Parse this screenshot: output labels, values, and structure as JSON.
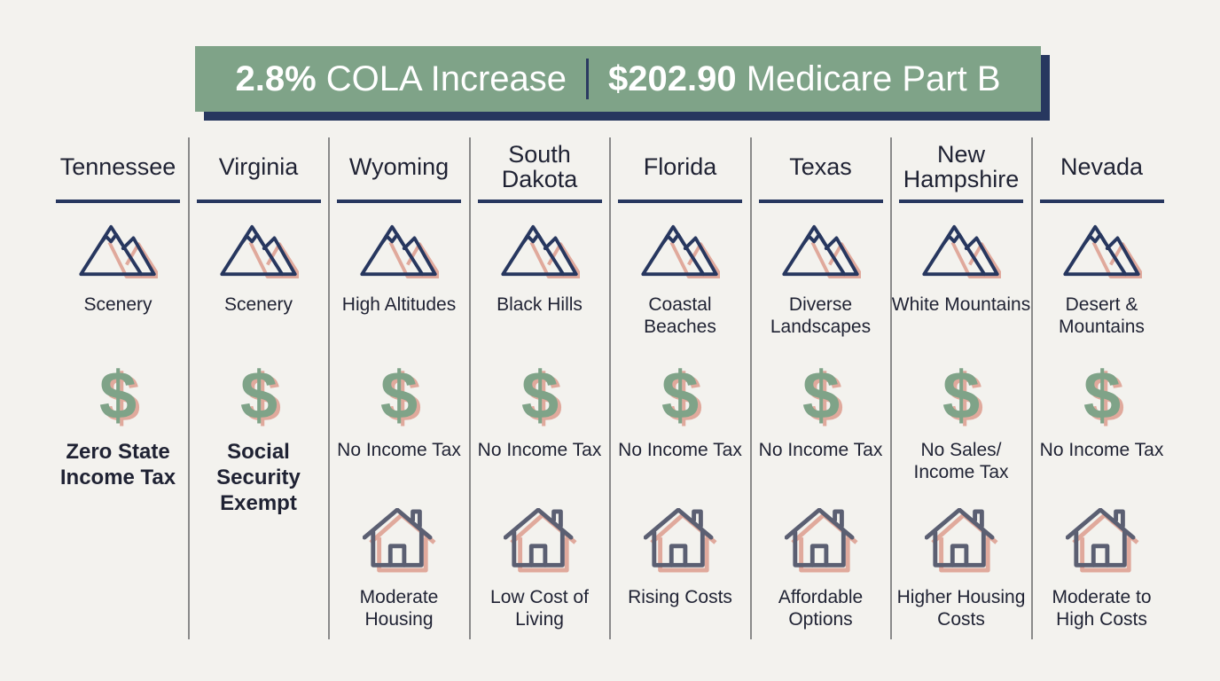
{
  "banner": {
    "cola_value": "2.8%",
    "cola_text": "COLA Increase",
    "medicare_value": "$202.90",
    "medicare_text": "Medicare Part B"
  },
  "colors": {
    "background": "#f3f2ee",
    "banner": "#7fa388",
    "navy": "#27375f",
    "dollar_green": "#7fa388",
    "shadow_red": "#e0a99c",
    "house_gray": "#5b5f72"
  },
  "icons": [
    "mountain-icon",
    "dollar-icon",
    "house-icon"
  ],
  "states": [
    {
      "name": "Tennessee",
      "scenery": "Scenery",
      "tax": "Zero State Income Tax",
      "tax_bold": true,
      "housing": null
    },
    {
      "name": "Virginia",
      "scenery": "Scenery",
      "tax": "Social Security Exempt",
      "tax_bold": true,
      "housing": null
    },
    {
      "name": "Wyoming",
      "scenery": "High Altitudes",
      "tax": "No Income Tax",
      "tax_bold": false,
      "housing": "Moderate Housing"
    },
    {
      "name": "South Dakota",
      "scenery": "Black Hills",
      "tax": "No Income Tax",
      "tax_bold": false,
      "housing": "Low Cost of Living"
    },
    {
      "name": "Florida",
      "scenery": "Coastal Beaches",
      "tax": "No Income Tax",
      "tax_bold": false,
      "housing": "Rising Costs"
    },
    {
      "name": "Texas",
      "scenery": "Diverse Landscapes",
      "tax": "No Income Tax",
      "tax_bold": false,
      "housing": "Affordable Options"
    },
    {
      "name": "New Hampshire",
      "scenery": "White Mountains",
      "tax": "No Sales/ Income Tax",
      "tax_bold": false,
      "housing": "Higher Housing Costs"
    },
    {
      "name": "Nevada",
      "scenery": "Desert & Mountains",
      "tax": "No Income Tax",
      "tax_bold": false,
      "housing": "Moderate to High Costs"
    }
  ]
}
